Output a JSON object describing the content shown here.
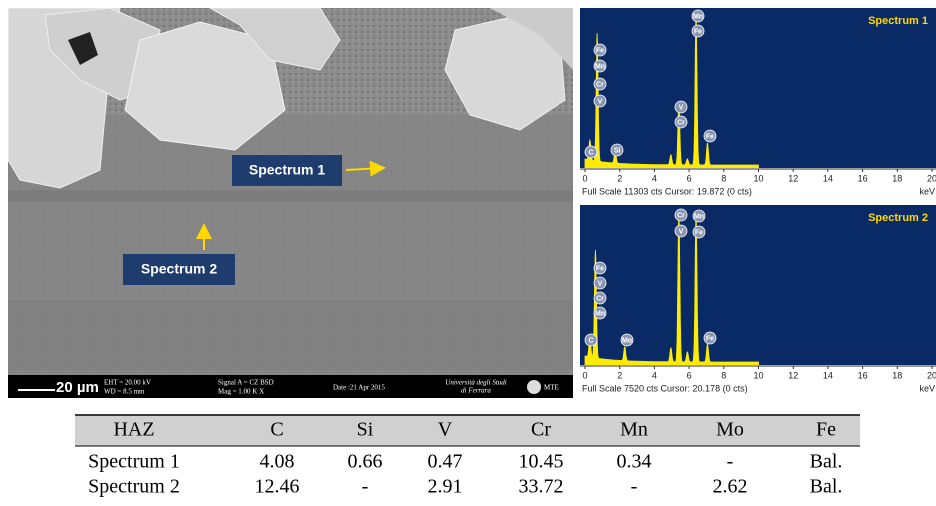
{
  "sem_image": {
    "labels": [
      "Spectrum 1",
      "Spectrum 2"
    ],
    "scale_bar": "20 µm",
    "info": [
      "EHT = 20.00 kV",
      "WD = 8.5 mm",
      "Signal A = CZ BSD",
      "Mag = 1.00 K X",
      "Date :21 Apr 2015",
      "Università degli Studi",
      "di Ferrara",
      "MTE"
    ]
  },
  "spectra": [
    {
      "title": "Spectrum 1",
      "footer": "Full Scale 11303 cts Cursor: 19.872 (0 cts)",
      "unit": "keV",
      "xticks": [
        0,
        2,
        4,
        6,
        8,
        10,
        12,
        14,
        16,
        18,
        20
      ],
      "peak_labels": [
        "Fe",
        "Mn",
        "Cr",
        "V",
        "C",
        "Si",
        "Mn",
        "Fe",
        "V",
        "Cr",
        "Fe"
      ]
    },
    {
      "title": "Spectrum 2",
      "footer": "Full Scale 7520 cts Cursor: 20.178 (0 cts)",
      "unit": "keV",
      "xticks": [
        0,
        2,
        4,
        6,
        8,
        10,
        12,
        14,
        16,
        18,
        20
      ],
      "peak_labels": [
        "Cr",
        "V",
        "Mn",
        "Fe",
        "Fe",
        "V",
        "Cr",
        "Mn",
        "C",
        "Mo",
        "Fe"
      ]
    }
  ],
  "table": {
    "header": [
      "HAZ",
      "C",
      "Si",
      "V",
      "Cr",
      "Mn",
      "Mo",
      "Fe"
    ],
    "rows": [
      [
        "Spectrum 1",
        4.08,
        0.66,
        0.47,
        10.45,
        0.34,
        "-",
        "Bal."
      ],
      [
        "Spectrum 2",
        12.46,
        "-",
        2.91,
        33.72,
        "-",
        2.62,
        "Bal."
      ]
    ]
  }
}
